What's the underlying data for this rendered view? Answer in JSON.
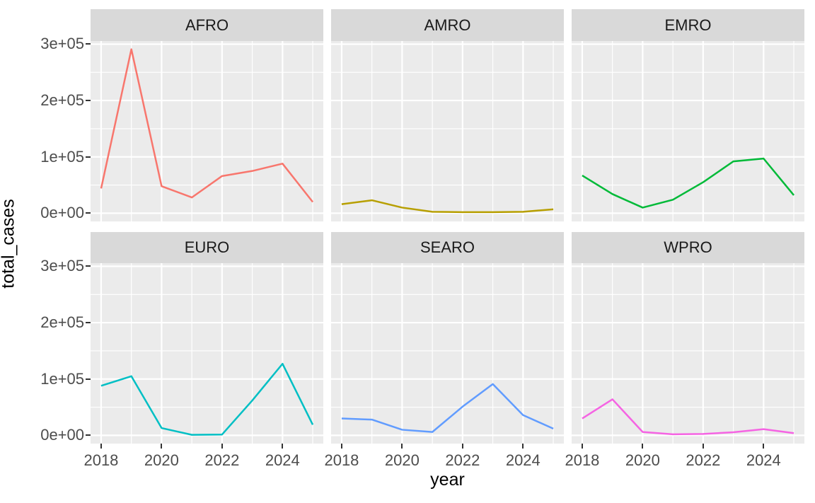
{
  "figure": {
    "x_axis_title": "year",
    "y_axis_title": "total_cases"
  },
  "chart_data": {
    "type": "line",
    "faceted_by": "WHO region",
    "title": "",
    "xlabel": "year",
    "ylabel": "total_cases",
    "x": [
      2018,
      2019,
      2020,
      2021,
      2022,
      2023,
      2024,
      2025
    ],
    "xlim": [
      2018,
      2025
    ],
    "ylim": [
      0,
      300000
    ],
    "x_major_ticks": [
      2018,
      2020,
      2022,
      2024
    ],
    "x_minor_ticks": [
      2019,
      2021,
      2023,
      2025
    ],
    "x_tick_labels": [
      "2018",
      "2020",
      "2022",
      "2024"
    ],
    "y_major_ticks": [
      0,
      100000,
      200000,
      300000
    ],
    "y_minor_ticks": [
      50000,
      150000,
      250000
    ],
    "y_tick_labels": [
      "0e+00",
      "1e+05",
      "2e+05",
      "3e+05"
    ],
    "grid": true,
    "legend": "none",
    "series": [
      {
        "name": "AFRO",
        "color": "#F8766D",
        "values": [
          44000,
          291000,
          48000,
          28000,
          66000,
          75000,
          88000,
          20000
        ]
      },
      {
        "name": "AMRO",
        "color": "#B79F00",
        "values": [
          16000,
          23000,
          10000,
          2500,
          2000,
          2000,
          2500,
          7000
        ]
      },
      {
        "name": "EMRO",
        "color": "#00BA38",
        "values": [
          67000,
          34000,
          10000,
          24000,
          55000,
          92000,
          97000,
          32000
        ]
      },
      {
        "name": "EURO",
        "color": "#00BFC4",
        "values": [
          88000,
          105000,
          13000,
          1000,
          1500,
          62000,
          127000,
          19000
        ]
      },
      {
        "name": "SEARO",
        "color": "#619CFF",
        "values": [
          30000,
          28000,
          10000,
          6000,
          51000,
          91000,
          36000,
          12000
        ]
      },
      {
        "name": "WPRO",
        "color": "#F564E3",
        "values": [
          30000,
          64000,
          6000,
          2000,
          2500,
          5500,
          11000,
          4000
        ]
      }
    ]
  },
  "style": {
    "panel_background": "#EBEBEB",
    "strip_background": "#D9D9D9",
    "grid_color": "#FFFFFF",
    "tick_mark_color": "#333333",
    "tick_label_color": "#4D4D4D",
    "strip_text_color": "#1A1A1A",
    "axis_title_color": "#000000",
    "figure_background": "#FFFFFF"
  }
}
